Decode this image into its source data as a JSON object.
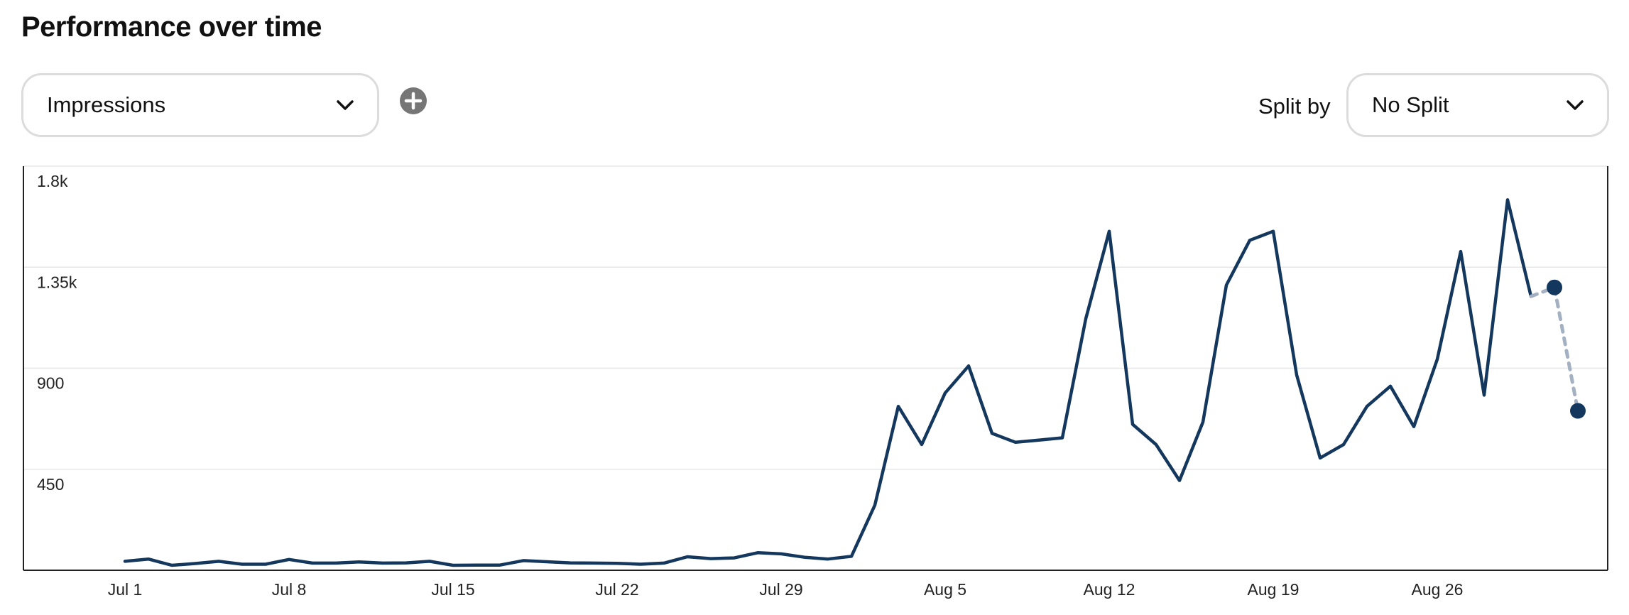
{
  "header": {
    "title": "Performance over time"
  },
  "controls": {
    "metric_selected": "Impressions",
    "split_label": "Split by",
    "split_selected": "No Split"
  },
  "icons": {
    "add": "plus-circle-icon",
    "dropdown": "chevron-down-icon"
  },
  "colors": {
    "line": "#14375e",
    "projection": "#a3b1c2",
    "grid": "#e6e6e6",
    "axis": "#222222",
    "add_button": "#767676"
  },
  "chart_data": {
    "type": "line",
    "y_ticks": [
      "450",
      "900",
      "1.35k",
      "1.8k"
    ],
    "ylim": [
      0,
      1800
    ],
    "x_ticks": [
      "Jul 1",
      "Jul 8",
      "Jul 15",
      "Jul 22",
      "Jul 29",
      "Aug 5",
      "Aug 12",
      "Aug 19",
      "Aug 26"
    ],
    "grid": true,
    "series": [
      {
        "x": [
          "Jul 1",
          "Jul 2",
          "Jul 3",
          "Jul 4",
          "Jul 5",
          "Jul 6",
          "Jul 7",
          "Jul 8",
          "Jul 9",
          "Jul 10",
          "Jul 11",
          "Jul 12",
          "Jul 13",
          "Jul 14",
          "Jul 15",
          "Jul 16",
          "Jul 17",
          "Jul 18",
          "Jul 19",
          "Jul 20",
          "Jul 21",
          "Jul 22",
          "Jul 23",
          "Jul 24",
          "Jul 25",
          "Jul 26",
          "Jul 27",
          "Jul 28",
          "Jul 29",
          "Jul 30",
          "Jul 31",
          "Aug 1",
          "Aug 2",
          "Aug 3",
          "Aug 4",
          "Aug 5",
          "Aug 6",
          "Aug 7",
          "Aug 8",
          "Aug 9",
          "Aug 10",
          "Aug 11",
          "Aug 12",
          "Aug 13",
          "Aug 14",
          "Aug 15",
          "Aug 16",
          "Aug 17",
          "Aug 18",
          "Aug 19",
          "Aug 20",
          "Aug 21",
          "Aug 22",
          "Aug 23",
          "Aug 24",
          "Aug 25",
          "Aug 26",
          "Aug 27",
          "Aug 28",
          "Aug 29",
          "Aug 30"
        ],
        "values": [
          40,
          50,
          22,
          30,
          40,
          27,
          27,
          48,
          32,
          32,
          37,
          32,
          33,
          40,
          22,
          23,
          23,
          43,
          38,
          33,
          32,
          31,
          27,
          32,
          60,
          52,
          55,
          78,
          73,
          58,
          50,
          62,
          290,
          730,
          560,
          790,
          910,
          610,
          570,
          580,
          590,
          1120,
          1510,
          650,
          560,
          400,
          660,
          1270,
          1470,
          1510,
          870,
          500,
          560,
          730,
          820,
          640,
          940,
          1420,
          780,
          1650,
          1220
        ]
      },
      {
        "x": [
          "Aug 30",
          "Aug 31",
          "Sep 1"
        ],
        "values": [
          1220,
          1260,
          710
        ],
        "dashed": true
      }
    ]
  }
}
